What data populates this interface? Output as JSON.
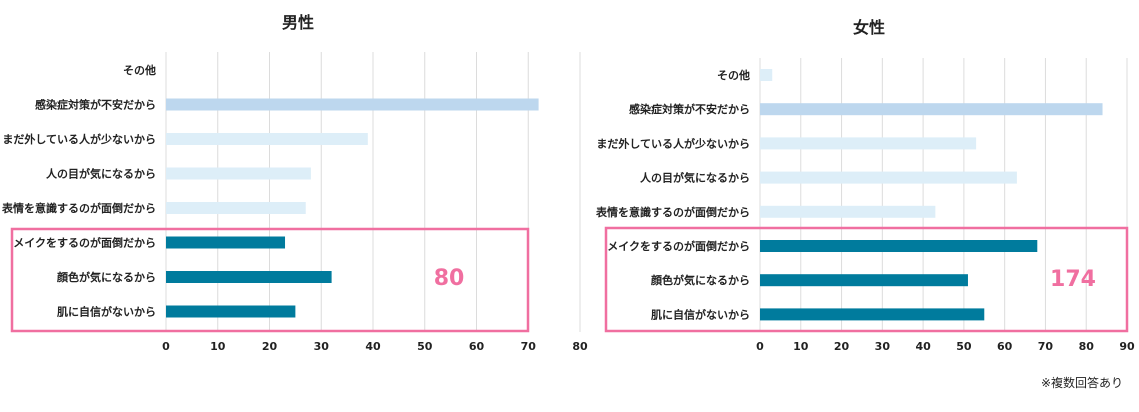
{
  "colors": {
    "bar_light_blue": "#bdd7ee",
    "bar_pale_blue": "#ddeef8",
    "bar_teal": "#007b9d",
    "highlight": "#f06fa0",
    "grid": "#dcdcdc"
  },
  "footnote": "※複数回答あり",
  "chart_data": [
    {
      "type": "bar",
      "orientation": "horizontal",
      "title": "男性",
      "categories": [
        "その他",
        "感染症対策が不安だから",
        "まだ外している人が少ないから",
        "人の目が気になるから",
        "表情を意識するのが面倒だから",
        "メイクをするのが面倒だから",
        "顔色が気になるから",
        "肌に自信がないから"
      ],
      "values": [
        0,
        72,
        39,
        28,
        27,
        23,
        32,
        25
      ],
      "bar_colors": [
        "#bdd7ee",
        "#bdd7ee",
        "#ddeef8",
        "#ddeef8",
        "#ddeef8",
        "#007b9d",
        "#007b9d",
        "#007b9d"
      ],
      "xlim": [
        0,
        80
      ],
      "xticks": [
        0,
        10,
        20,
        30,
        40,
        50,
        60,
        70,
        80
      ],
      "grid": true,
      "highlight_label": "80"
    },
    {
      "type": "bar",
      "orientation": "horizontal",
      "title": "女性",
      "categories": [
        "その他",
        "感染症対策が不安だから",
        "まだ外している人が少ないから",
        "人の目が気になるから",
        "表情を意識するのが面倒だから",
        "メイクをするのが面倒だから",
        "顔色が気になるから",
        "肌に自信がないから"
      ],
      "values": [
        3,
        84,
        53,
        63,
        43,
        68,
        51,
        55
      ],
      "bar_colors": [
        "#ddeef8",
        "#bdd7ee",
        "#ddeef8",
        "#ddeef8",
        "#ddeef8",
        "#007b9d",
        "#007b9d",
        "#007b9d"
      ],
      "xlim": [
        0,
        90
      ],
      "xticks": [
        0,
        10,
        20,
        30,
        40,
        50,
        60,
        70,
        80,
        90
      ],
      "grid": true,
      "highlight_label": "174"
    }
  ]
}
